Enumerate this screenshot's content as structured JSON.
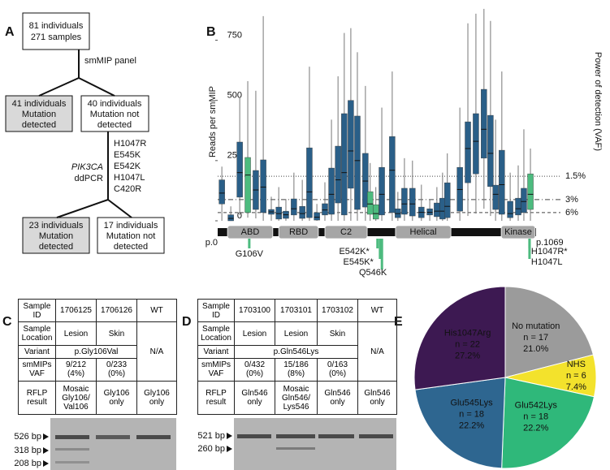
{
  "panel_labels": [
    "A",
    "B",
    "C",
    "D",
    "E"
  ],
  "flowchart": {
    "nodes": [
      {
        "lines": [
          "81 individuals",
          "271 samples"
        ]
      },
      {
        "lines": [
          "41 individuals",
          "Mutation",
          "detected"
        ]
      },
      {
        "lines": [
          "40 individuals",
          "Mutation not",
          "detected"
        ]
      },
      {
        "lines": [
          "23 individuals",
          "Mutation",
          "detected"
        ]
      },
      {
        "lines": [
          "17 individuals",
          "Mutation not",
          "detected"
        ]
      }
    ],
    "edge_label": "smMIP panel",
    "assay": {
      "gene": "PIK3CA",
      "method": "ddPCR",
      "targets": [
        "H1047R",
        "E545K",
        "E542K",
        "H1047L",
        "C420R"
      ]
    }
  },
  "chart_data": [
    {
      "type": "box",
      "y_label": "Reads per smMIP",
      "y2_label": "Power of detection (VAF)",
      "ylim": [
        0,
        900
      ],
      "yticks": [
        0,
        250,
        500,
        750
      ],
      "xlim": [
        0,
        1069
      ],
      "xticks": [
        {
          "value": 0,
          "label": "p.0"
        },
        {
          "value": 1069,
          "label": "p.1069"
        }
      ],
      "reference_lines": [
        {
          "reads": 185,
          "label": "1.5%",
          "style": "dotted"
        },
        {
          "reads": 88,
          "label": "3%",
          "style": "dashdot"
        },
        {
          "reads": 34,
          "label": "6%",
          "style": "dashed"
        }
      ],
      "boxes": [
        {
          "x": 14,
          "low": 0,
          "q1": 70,
          "median": 115,
          "q3": 170,
          "high": 225,
          "color": "#2a5f88"
        },
        {
          "x": 44,
          "low": 0,
          "q1": 0,
          "median": 10,
          "q3": 25,
          "high": 60,
          "color": "#2a5f88"
        },
        {
          "x": 74,
          "low": 24,
          "q1": 98,
          "median": 200,
          "q3": 327,
          "high": 512,
          "color": "#2a5f88"
        },
        {
          "x": 101,
          "low": 13,
          "q1": 34,
          "median": 190,
          "q3": 263,
          "high": 580,
          "color": "#4dbb7f"
        },
        {
          "x": 128,
          "low": 10,
          "q1": 47,
          "median": 128,
          "q3": 209,
          "high": 540,
          "color": "#2a5f88"
        },
        {
          "x": 153,
          "low": 0,
          "q1": 34,
          "median": 140,
          "q3": 253,
          "high": 850,
          "color": "#2a5f88"
        },
        {
          "x": 180,
          "low": 0,
          "q1": 27,
          "median": 37,
          "q3": 47,
          "high": 100,
          "color": "#2a5f88"
        },
        {
          "x": 205,
          "low": 0,
          "q1": 7,
          "median": 30,
          "q3": 57,
          "high": 140,
          "color": "#2a5f88"
        },
        {
          "x": 229,
          "low": 0,
          "q1": 10,
          "median": 25,
          "q3": 40,
          "high": 90,
          "color": "#2a5f88"
        },
        {
          "x": 256,
          "low": 0,
          "q1": 24,
          "median": 50,
          "q3": 91,
          "high": 200,
          "color": "#2a5f88"
        },
        {
          "x": 284,
          "low": 0,
          "q1": 10,
          "median": 30,
          "q3": 60,
          "high": 170,
          "color": "#2a5f88"
        },
        {
          "x": 308,
          "low": 0,
          "q1": 13,
          "median": 120,
          "q3": 303,
          "high": 640,
          "color": "#2a5f88"
        },
        {
          "x": 333,
          "low": 0,
          "q1": 3,
          "median": 15,
          "q3": 34,
          "high": 70,
          "color": "#2a5f88"
        },
        {
          "x": 360,
          "low": 0,
          "q1": 24,
          "median": 45,
          "q3": 71,
          "high": 160,
          "color": "#2a5f88"
        },
        {
          "x": 382,
          "low": 0,
          "q1": 27,
          "median": 110,
          "q3": 219,
          "high": 420,
          "color": "#2a5f88"
        },
        {
          "x": 404,
          "low": 0,
          "q1": 74,
          "median": 170,
          "q3": 310,
          "high": 600,
          "color": "#2a5f88"
        },
        {
          "x": 425,
          "low": 0,
          "q1": 24,
          "median": 200,
          "q3": 445,
          "high": 780,
          "color": "#2a5f88"
        },
        {
          "x": 447,
          "low": 0,
          "q1": 135,
          "median": 290,
          "q3": 500,
          "high": 800,
          "color": "#2a5f88"
        },
        {
          "x": 469,
          "low": 0,
          "q1": 47,
          "median": 250,
          "q3": 435,
          "high": 700,
          "color": "#2a5f88"
        },
        {
          "x": 496,
          "low": 0,
          "q1": 57,
          "median": 165,
          "q3": 280,
          "high": 560,
          "color": "#2a5f88"
        },
        {
          "x": 512,
          "low": 0,
          "q1": 27,
          "median": 70,
          "q3": 121,
          "high": 240,
          "color": "#4dbb7f"
        },
        {
          "x": 531,
          "low": 0,
          "q1": 7,
          "median": 30,
          "q3": 67,
          "high": 140,
          "color": "#4dbb7f"
        },
        {
          "x": 551,
          "low": 0,
          "q1": 24,
          "median": 110,
          "q3": 222,
          "high": 470,
          "color": "#2a5f88"
        },
        {
          "x": 586,
          "low": 0,
          "q1": 34,
          "median": 210,
          "q3": 350,
          "high": 620,
          "color": "#2a5f88"
        },
        {
          "x": 605,
          "low": 0,
          "q1": 13,
          "median": 30,
          "q3": 50,
          "high": 120,
          "color": "#2a5f88"
        },
        {
          "x": 627,
          "low": 0,
          "q1": 27,
          "median": 70,
          "q3": 135,
          "high": 260,
          "color": "#2a5f88"
        },
        {
          "x": 654,
          "low": 0,
          "q1": 20,
          "median": 70,
          "q3": 135,
          "high": 250,
          "color": "#2a5f88"
        },
        {
          "x": 684,
          "low": 0,
          "q1": 13,
          "median": 35,
          "q3": 57,
          "high": 150,
          "color": "#2a5f88"
        },
        {
          "x": 712,
          "low": 0,
          "q1": 24,
          "median": 35,
          "q3": 50,
          "high": 90,
          "color": "#2a5f88"
        },
        {
          "x": 736,
          "low": 0,
          "q1": 17,
          "median": 40,
          "q3": 74,
          "high": 140,
          "color": "#2a5f88"
        },
        {
          "x": 755,
          "low": 0,
          "q1": 7,
          "median": 40,
          "q3": 94,
          "high": 200,
          "color": "#2a5f88"
        },
        {
          "x": 771,
          "low": 0,
          "q1": 13,
          "median": 60,
          "q3": 158,
          "high": 280,
          "color": "#2a5f88"
        },
        {
          "x": 813,
          "low": 0,
          "q1": 40,
          "median": 130,
          "q3": 222,
          "high": 470,
          "color": "#2a5f88"
        },
        {
          "x": 840,
          "low": 20,
          "q1": 158,
          "median": 300,
          "q3": 411,
          "high": 820,
          "color": "#2a5f88"
        },
        {
          "x": 867,
          "low": 30,
          "q1": 195,
          "median": 330,
          "q3": 445,
          "high": 860,
          "color": "#2a5f88"
        },
        {
          "x": 894,
          "low": 50,
          "q1": 260,
          "median": 380,
          "q3": 546,
          "high": 880,
          "color": "#2a5f88"
        },
        {
          "x": 916,
          "low": 20,
          "q1": 142,
          "median": 280,
          "q3": 438,
          "high": 830,
          "color": "#2a5f88"
        },
        {
          "x": 933,
          "low": 0,
          "q1": 47,
          "median": 110,
          "q3": 148,
          "high": 420,
          "color": "#2a5f88"
        },
        {
          "x": 954,
          "low": 0,
          "q1": 27,
          "median": 150,
          "q3": 293,
          "high": 620,
          "color": "#2a5f88"
        },
        {
          "x": 982,
          "low": 0,
          "q1": 13,
          "median": 30,
          "q3": 81,
          "high": 200,
          "color": "#2a5f88"
        },
        {
          "x": 1009,
          "low": 0,
          "q1": 24,
          "median": 50,
          "q3": 94,
          "high": 230,
          "color": "#2a5f88"
        },
        {
          "x": 1028,
          "low": 0,
          "q1": 34,
          "median": 80,
          "q3": 135,
          "high": 380,
          "color": "#2a5f88"
        },
        {
          "x": 1050,
          "low": 0,
          "q1": 47,
          "median": 110,
          "q3": 195,
          "high": 300,
          "color": "#4dbb7f"
        }
      ],
      "domains": [
        {
          "name": "ABD",
          "start": 33,
          "end": 185
        },
        {
          "name": "RBD",
          "start": 205,
          "end": 338
        },
        {
          "name": "C2",
          "start": 360,
          "end": 502
        },
        {
          "name": "Helical",
          "start": 597,
          "end": 783
        },
        {
          "name": "Kinase",
          "start": 952,
          "end": 1066
        }
      ],
      "mutations": [
        {
          "position": 106,
          "label": "G106V"
        },
        {
          "position": 542,
          "label": "E542K*"
        },
        {
          "position": 545,
          "label": "E545K*"
        },
        {
          "position": 546,
          "label": "Q546K"
        },
        {
          "position": 1047,
          "label": "H1047R*"
        },
        {
          "position": 1047,
          "label": "H1047L"
        }
      ],
      "mutation_color": "#4dbb7f"
    },
    {
      "type": "pie",
      "categories": [
        "No mutation",
        "NHS",
        "Glu542Lys",
        "Glu545Lys",
        "His1047Arg"
      ],
      "values": [
        17,
        6,
        18,
        18,
        22
      ],
      "value_labels": [
        "n = 17",
        "n = 6",
        "n = 18",
        "n = 18",
        "n = 22"
      ],
      "percents": [
        21.0,
        7.4,
        22.2,
        22.2,
        27.2
      ],
      "percent_labels": [
        "21.0%",
        "7.4%",
        "22.2%",
        "22.2%",
        "27.2%"
      ],
      "colors": [
        "#9b9b9b",
        "#f3e22c",
        "#2fb87a",
        "#2e6690",
        "#3d1952"
      ]
    }
  ],
  "table_c": {
    "rows": [
      [
        "Sample\nID",
        "1706125",
        "1706126",
        "WT"
      ],
      [
        "Sample\nLocation",
        "Lesion",
        "Skin",
        "N/A"
      ],
      [
        "Variant",
        "p.Gly106Val"
      ],
      [
        "smMIPs\nVAF",
        "9/212\n(4%)",
        "0/233\n(0%)"
      ],
      [
        "RFLP\nresult",
        "Mosaic\nGly106/\nVal106",
        "Gly106\nonly",
        "Gly106\nonly"
      ]
    ],
    "gel_markers": [
      "526 bp",
      "318 bp",
      "208 bp"
    ]
  },
  "table_d": {
    "rows": [
      [
        "Sample\nID",
        "1703100",
        "1703101",
        "1703102",
        "WT"
      ],
      [
        "Sample\nLocation",
        "Lesion",
        "Lesion",
        "Skin",
        "N/A"
      ],
      [
        "Variant",
        "p.Gln546Lys"
      ],
      [
        "smMIPs\nVAF",
        "0/432\n(0%)",
        "15/186\n(8%)",
        "0/163\n(0%)"
      ],
      [
        "RFLP\nresult",
        "Gln546\nonly",
        "Mosaic\nGln546/\nLys546",
        "Gln546\nonly",
        "Gln546\nonly"
      ]
    ],
    "gel_markers": [
      "521 bp",
      "260 bp"
    ]
  }
}
